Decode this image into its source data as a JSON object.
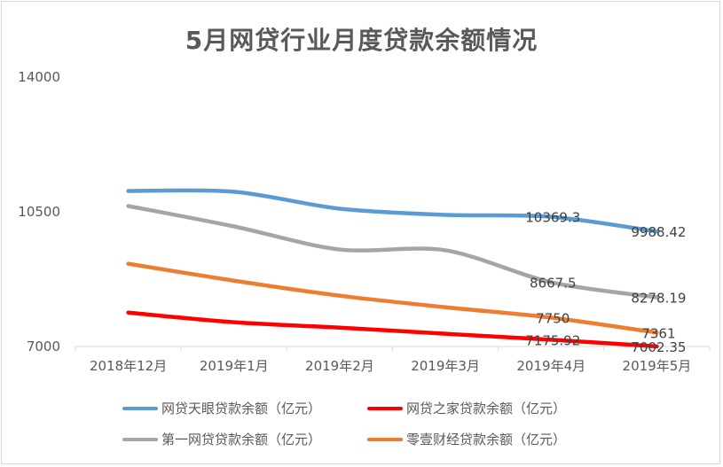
{
  "chart_data": {
    "type": "line",
    "title": "5月网贷行业月度贷款余额情况",
    "xlabel": "",
    "ylabel": "",
    "categories": [
      "2018年12月",
      "2019年1月",
      "2019年2月",
      "2019年3月",
      "2019年4月",
      "2019年5月"
    ],
    "ylim": [
      7000,
      14000
    ],
    "yticks": [
      7000,
      10500,
      14000
    ],
    "grid": false,
    "legend_position": "bottom",
    "series": [
      {
        "name": "网贷天眼贷款余额（亿元）",
        "color": "#5b9bd5",
        "values": [
          11040,
          11020,
          10580,
          10420,
          10369.3,
          9988.42
        ],
        "labels": [
          null,
          null,
          null,
          null,
          "10369.3",
          "9988.42"
        ]
      },
      {
        "name": "网贷之家贷款余额（亿元）",
        "color": "#ff0000",
        "values": [
          7880,
          7630,
          7490,
          7330,
          7175.92,
          7002.35
        ],
        "labels": [
          null,
          null,
          null,
          null,
          "7175.92",
          "7002.35"
        ]
      },
      {
        "name": "第一网贷贷款余额（亿元）",
        "color": "#a5a5a5",
        "values": [
          10650,
          10120,
          9520,
          9500,
          8667.5,
          8278.19
        ],
        "labels": [
          null,
          null,
          null,
          null,
          "8667.5",
          "8278.19"
        ]
      },
      {
        "name": "零壹财经贷款余额（亿元）",
        "color": "#ed7d31",
        "values": [
          9150,
          8710,
          8320,
          8020,
          7750,
          7361
        ],
        "labels": [
          null,
          null,
          null,
          null,
          "7750",
          "7361"
        ]
      }
    ]
  }
}
